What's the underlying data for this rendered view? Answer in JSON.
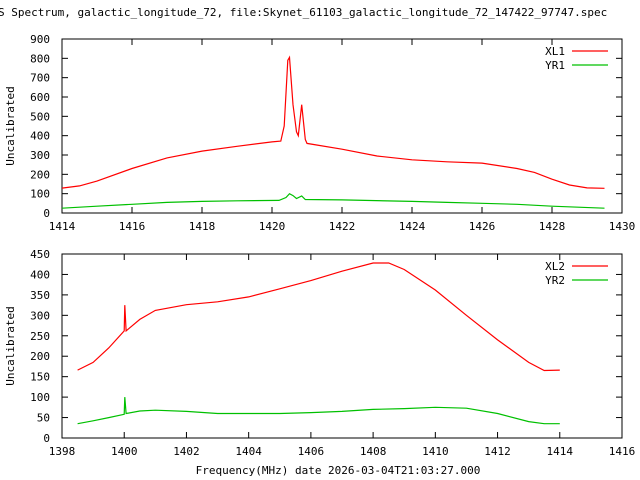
{
  "chart_data": [
    {
      "type": "line",
      "title": "S Spectrum, galactic_longitude_72, file:Skynet_61103_galactic_longitude_72_147422_97747.spec",
      "xlabel": "",
      "ylabel": "Uncalibrated",
      "xlim": [
        1414,
        1430
      ],
      "ylim": [
        0,
        900
      ],
      "xticks": [
        "1414",
        "1416",
        "1418",
        "1420",
        "1422",
        "1424",
        "1426",
        "1428",
        "1430"
      ],
      "yticks": [
        "0",
        "100",
        "200",
        "300",
        "400",
        "500",
        "600",
        "700",
        "800",
        "900"
      ],
      "legend": "top-right",
      "series": [
        {
          "name": "XL1",
          "color": "#ff0000",
          "points": [
            [
              1414,
              129
            ],
            [
              1414.5,
              140
            ],
            [
              1415,
              165
            ],
            [
              1416,
              230
            ],
            [
              1417,
              285
            ],
            [
              1418,
              320
            ],
            [
              1419,
              345
            ],
            [
              1420,
              368
            ],
            [
              1420.25,
              372
            ],
            [
              1420.35,
              450
            ],
            [
              1420.45,
              790
            ],
            [
              1420.5,
              805
            ],
            [
              1420.6,
              560
            ],
            [
              1420.7,
              420
            ],
            [
              1420.75,
              400
            ],
            [
              1420.85,
              560
            ],
            [
              1420.95,
              380
            ],
            [
              1421,
              360
            ],
            [
              1422,
              330
            ],
            [
              1423,
              295
            ],
            [
              1424,
              275
            ],
            [
              1425,
              265
            ],
            [
              1426,
              258
            ],
            [
              1427,
              230
            ],
            [
              1427.5,
              210
            ],
            [
              1428,
              175
            ],
            [
              1428.5,
              145
            ],
            [
              1429,
              130
            ],
            [
              1429.5,
              128
            ]
          ]
        },
        {
          "name": "YR1",
          "color": "#00c000",
          "points": [
            [
              1414,
              25
            ],
            [
              1415,
              35
            ],
            [
              1416,
              45
            ],
            [
              1417,
              55
            ],
            [
              1418,
              60
            ],
            [
              1419,
              63
            ],
            [
              1420.2,
              65
            ],
            [
              1420.4,
              80
            ],
            [
              1420.5,
              100
            ],
            [
              1420.6,
              90
            ],
            [
              1420.7,
              75
            ],
            [
              1420.85,
              88
            ],
            [
              1420.95,
              70
            ],
            [
              1422,
              68
            ],
            [
              1424,
              60
            ],
            [
              1425,
              55
            ],
            [
              1426,
              50
            ],
            [
              1427,
              45
            ],
            [
              1428,
              35
            ],
            [
              1429.5,
              25
            ]
          ]
        }
      ]
    },
    {
      "type": "line",
      "xlabel": "Frequency(MHz) date 2026-03-04T21:03:27.000",
      "ylabel": "Uncalibrated",
      "xlim": [
        1398,
        1416
      ],
      "ylim": [
        0,
        450
      ],
      "xticks": [
        "1398",
        "1400",
        "1402",
        "1404",
        "1406",
        "1408",
        "1410",
        "1412",
        "1414",
        "1416"
      ],
      "yticks": [
        "0",
        "50",
        "100",
        "150",
        "200",
        "250",
        "300",
        "350",
        "400",
        "450"
      ],
      "legend": "top-right",
      "series": [
        {
          "name": "XL2",
          "color": "#ff0000",
          "points": [
            [
              1398.5,
              166
            ],
            [
              1399,
              185
            ],
            [
              1399.5,
              220
            ],
            [
              1400,
              262
            ],
            [
              1400.02,
              325
            ],
            [
              1400.06,
              262
            ],
            [
              1400.5,
              290
            ],
            [
              1401,
              312
            ],
            [
              1402,
              326
            ],
            [
              1403,
              333
            ],
            [
              1404,
              345
            ],
            [
              1405,
              365
            ],
            [
              1406,
              385
            ],
            [
              1407,
              408
            ],
            [
              1408,
              428
            ],
            [
              1408.5,
              428
            ],
            [
              1409,
              412
            ],
            [
              1410,
              362
            ],
            [
              1411,
              300
            ],
            [
              1412,
              240
            ],
            [
              1413,
              185
            ],
            [
              1413.5,
              165
            ],
            [
              1414,
              166
            ]
          ]
        },
        {
          "name": "YR2",
          "color": "#00c000",
          "points": [
            [
              1398.5,
              35
            ],
            [
              1399,
              42
            ],
            [
              1399.5,
              50
            ],
            [
              1400,
              58
            ],
            [
              1400.02,
              100
            ],
            [
              1400.06,
              60
            ],
            [
              1400.5,
              66
            ],
            [
              1401,
              68
            ],
            [
              1402,
              65
            ],
            [
              1403,
              60
            ],
            [
              1404,
              60
            ],
            [
              1405,
              60
            ],
            [
              1406,
              62
            ],
            [
              1407,
              65
            ],
            [
              1408,
              70
            ],
            [
              1409,
              72
            ],
            [
              1410,
              75
            ],
            [
              1411,
              73
            ],
            [
              1412,
              60
            ],
            [
              1413,
              40
            ],
            [
              1413.5,
              35
            ],
            [
              1414,
              35
            ]
          ]
        }
      ]
    }
  ]
}
